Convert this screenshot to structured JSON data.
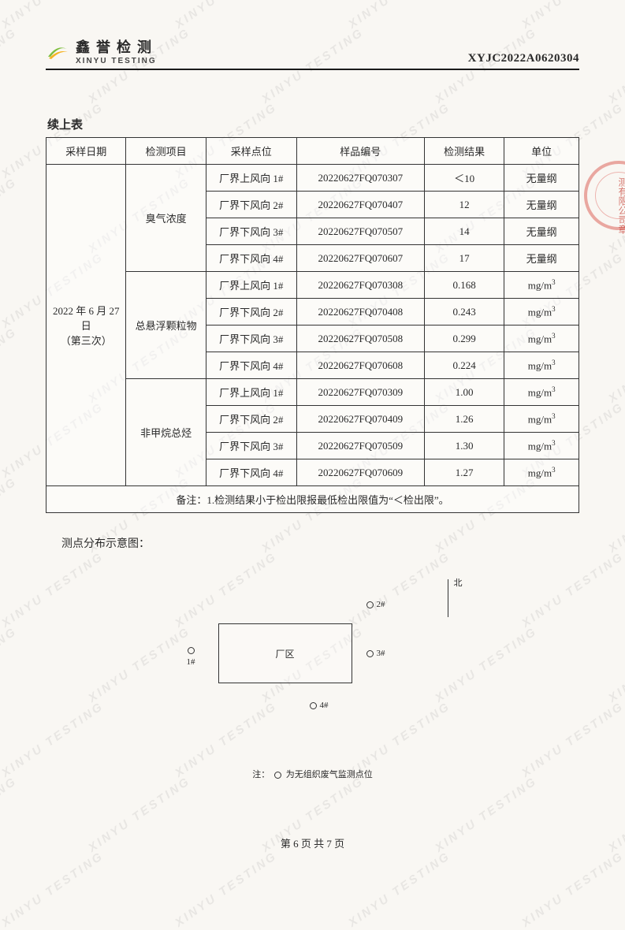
{
  "header": {
    "company_cn": "鑫誉检测",
    "company_en": "XINYU TESTING",
    "doc_id": "XYJC2022A0620304"
  },
  "watermark_text": "XINYU TESTING",
  "table": {
    "title": "续上表",
    "columns": [
      "采样日期",
      "检测项目",
      "采样点位",
      "样品编号",
      "检测结果",
      "单位"
    ],
    "col_widths_pct": [
      15,
      15,
      17,
      24,
      15,
      14
    ],
    "date_label_line1": "2022 年 6 月 27 日",
    "date_label_line2": "（第三次）",
    "groups": [
      {
        "item": "臭气浓度",
        "unit": "无量纲",
        "rows": [
          {
            "point": "厂界上风向 1#",
            "sample_no": "20220627FQ070307",
            "result": "＜10"
          },
          {
            "point": "厂界下风向 2#",
            "sample_no": "20220627FQ070407",
            "result": "12"
          },
          {
            "point": "厂界下风向 3#",
            "sample_no": "20220627FQ070507",
            "result": "14"
          },
          {
            "point": "厂界下风向 4#",
            "sample_no": "20220627FQ070607",
            "result": "17"
          }
        ]
      },
      {
        "item": "总悬浮颗粒物",
        "unit": "mg/m³",
        "rows": [
          {
            "point": "厂界上风向 1#",
            "sample_no": "20220627FQ070308",
            "result": "0.168"
          },
          {
            "point": "厂界下风向 2#",
            "sample_no": "20220627FQ070408",
            "result": "0.243"
          },
          {
            "point": "厂界下风向 3#",
            "sample_no": "20220627FQ070508",
            "result": "0.299"
          },
          {
            "point": "厂界下风向 4#",
            "sample_no": "20220627FQ070608",
            "result": "0.224"
          }
        ]
      },
      {
        "item": "非甲烷总烃",
        "unit": "mg/m³",
        "rows": [
          {
            "point": "厂界上风向 1#",
            "sample_no": "20220627FQ070309",
            "result": "1.00"
          },
          {
            "point": "厂界下风向 2#",
            "sample_no": "20220627FQ070409",
            "result": "1.26"
          },
          {
            "point": "厂界下风向 3#",
            "sample_no": "20220627FQ070509",
            "result": "1.30"
          },
          {
            "point": "厂界下风向 4#",
            "sample_no": "20220627FQ070609",
            "result": "1.27"
          }
        ]
      }
    ],
    "note": "备注：1.检测结果小于检出限报最低检出限值为“＜检出限”。"
  },
  "diagram": {
    "title": "测点分布示意图：",
    "north_label": "北",
    "rect_label": "厂区",
    "points": {
      "p1": "1#",
      "p2": "2#",
      "p3": "3#",
      "p4": "4#"
    },
    "legend_prefix": "注：",
    "legend_suffix": "为无组织废气监测点位"
  },
  "footer": {
    "page_text": "第 6 页 共 7 页"
  },
  "styling": {
    "page_bg": "#f9f7f3",
    "border_color": "#333333",
    "text_color": "#2a2a2a",
    "seal_color": "rgba(210,40,30,.55)",
    "seal_text": "测有限公司章"
  }
}
